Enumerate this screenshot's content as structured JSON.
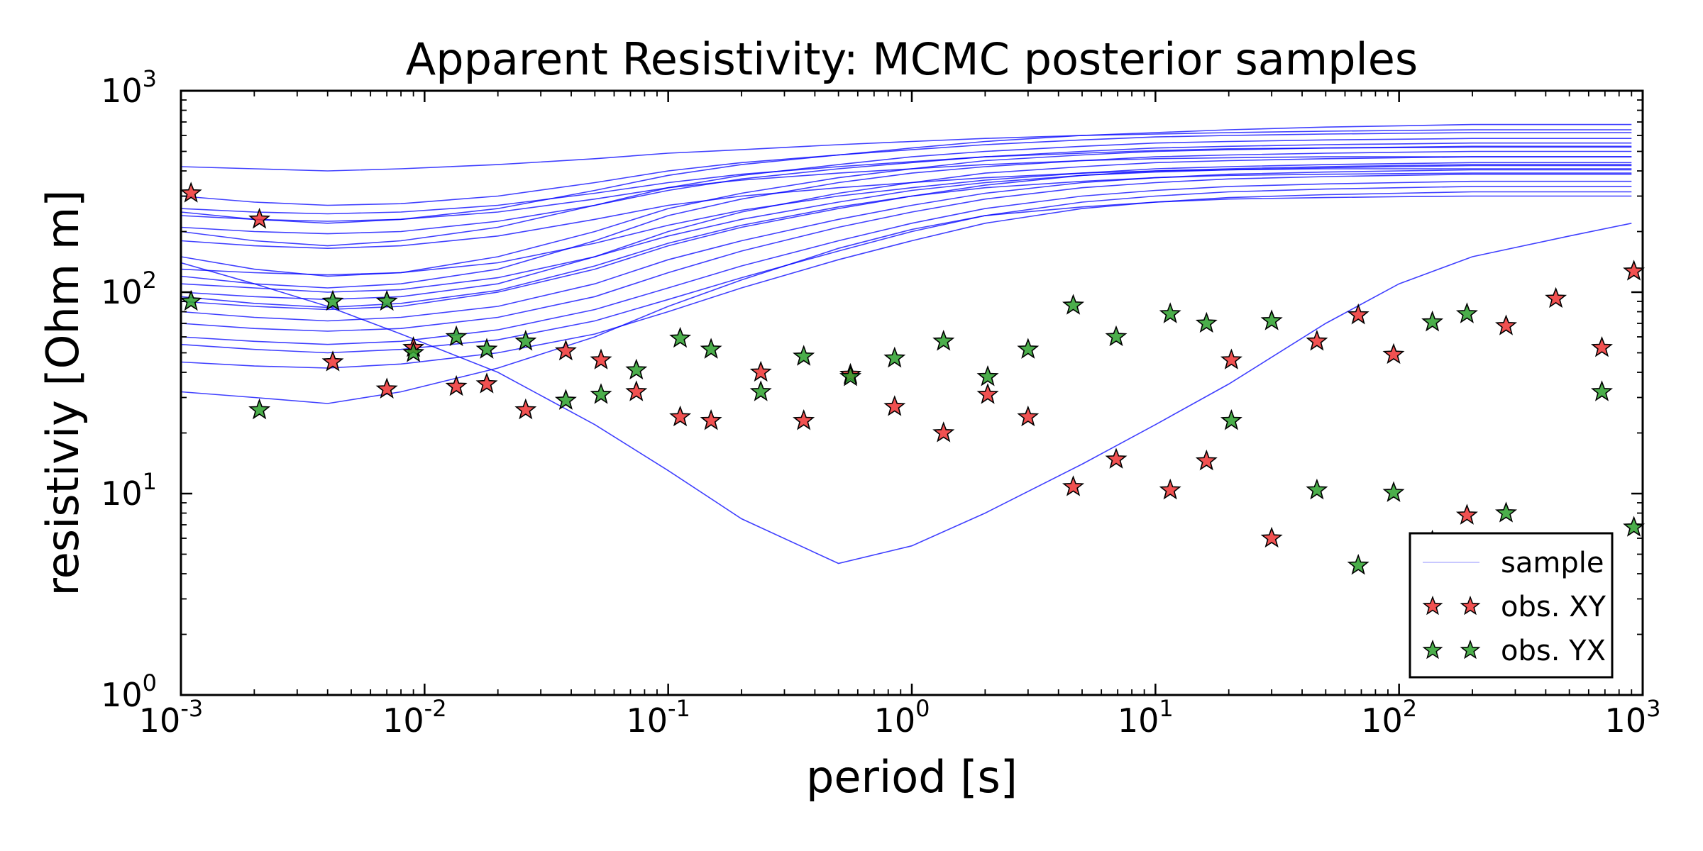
{
  "chart_data": {
    "type": "line",
    "title": "Apparent Resistivity: MCMC posterior samples",
    "xlabel": "period [s]",
    "ylabel": "resistiviy [Ohm m]",
    "xscale": "log",
    "yscale": "log",
    "xlim": [
      0.001,
      1000
    ],
    "ylim": [
      1,
      1000
    ],
    "grid": false,
    "legend_placement": "bottom-right",
    "x_ticks": [
      {
        "base": "10",
        "exp": "-3",
        "value": 0.001
      },
      {
        "base": "10",
        "exp": "-2",
        "value": 0.01
      },
      {
        "base": "10",
        "exp": "-1",
        "value": 0.1
      },
      {
        "base": "10",
        "exp": "0",
        "value": 1
      },
      {
        "base": "10",
        "exp": "1",
        "value": 10
      },
      {
        "base": "10",
        "exp": "2",
        "value": 100
      },
      {
        "base": "10",
        "exp": "3",
        "value": 1000
      }
    ],
    "y_ticks": [
      {
        "base": "10",
        "exp": "0",
        "value": 1
      },
      {
        "base": "10",
        "exp": "1",
        "value": 10
      },
      {
        "base": "10",
        "exp": "2",
        "value": 100
      },
      {
        "base": "10",
        "exp": "3",
        "value": 1000
      }
    ],
    "legend": [
      {
        "label": "sample",
        "kind": "line",
        "color": "#0000ff"
      },
      {
        "label": "obs. XY",
        "kind": "star",
        "color": "#ee3333"
      },
      {
        "label": "obs. YX",
        "kind": "star",
        "color": "#2ca02c"
      }
    ],
    "sample_color": "#0000ff",
    "sample_x": [
      0.001,
      0.002,
      0.004,
      0.008,
      0.02,
      0.05,
      0.1,
      0.2,
      0.5,
      1,
      2,
      5,
      10,
      20,
      50,
      100,
      200,
      500,
      900
    ],
    "samples": [
      [
        420,
        410,
        400,
        410,
        430,
        460,
        490,
        510,
        540,
        560,
        580,
        600,
        610,
        620,
        630,
        635,
        640,
        640,
        640
      ],
      [
        300,
        280,
        270,
        275,
        300,
        350,
        400,
        440,
        480,
        510,
        540,
        570,
        590,
        600,
        610,
        615,
        620,
        620,
        620
      ],
      [
        250,
        230,
        220,
        230,
        260,
        320,
        380,
        430,
        480,
        520,
        560,
        600,
        620,
        640,
        660,
        670,
        680,
        680,
        680
      ],
      [
        200,
        180,
        170,
        180,
        210,
        270,
        330,
        380,
        430,
        470,
        500,
        530,
        550,
        560,
        570,
        575,
        580,
        580,
        580
      ],
      [
        150,
        130,
        120,
        125,
        150,
        200,
        260,
        310,
        370,
        410,
        450,
        480,
        500,
        510,
        520,
        525,
        530,
        530,
        530
      ],
      [
        120,
        110,
        105,
        110,
        130,
        180,
        240,
        290,
        350,
        390,
        420,
        450,
        470,
        480,
        490,
        495,
        500,
        500,
        500
      ],
      [
        100,
        95,
        92,
        95,
        110,
        150,
        200,
        250,
        310,
        350,
        390,
        420,
        440,
        450,
        460,
        465,
        470,
        470,
        470
      ],
      [
        90,
        85,
        82,
        85,
        100,
        130,
        170,
        210,
        260,
        300,
        340,
        380,
        400,
        410,
        420,
        425,
        430,
        430,
        430
      ],
      [
        80,
        75,
        72,
        75,
        85,
        110,
        145,
        180,
        230,
        270,
        310,
        350,
        370,
        385,
        395,
        400,
        405,
        405,
        405
      ],
      [
        70,
        66,
        64,
        66,
        75,
        95,
        125,
        160,
        210,
        250,
        290,
        330,
        350,
        365,
        375,
        380,
        385,
        385,
        385
      ],
      [
        60,
        57,
        55,
        57,
        65,
        82,
        105,
        135,
        180,
        220,
        260,
        300,
        320,
        335,
        345,
        350,
        355,
        355,
        355
      ],
      [
        55,
        52,
        50,
        52,
        58,
        72,
        92,
        118,
        160,
        200,
        240,
        280,
        300,
        315,
        325,
        330,
        335,
        335,
        335
      ],
      [
        45,
        43,
        42,
        44,
        50,
        62,
        80,
        105,
        145,
        180,
        220,
        260,
        280,
        295,
        305,
        310,
        315,
        315,
        315
      ],
      [
        32,
        30,
        28,
        32,
        42,
        60,
        85,
        115,
        165,
        205,
        240,
        265,
        280,
        290,
        295,
        298,
        300,
        300,
        300
      ],
      [
        240,
        230,
        225,
        230,
        250,
        290,
        330,
        360,
        390,
        410,
        430,
        450,
        460,
        465,
        470,
        470,
        470,
        470,
        470
      ],
      [
        180,
        170,
        165,
        170,
        190,
        230,
        270,
        300,
        330,
        350,
        370,
        390,
        400,
        405,
        410,
        410,
        410,
        410,
        410
      ],
      [
        140,
        110,
        85,
        62,
        40,
        22,
        13,
        7.5,
        4.5,
        5.5,
        8,
        14,
        22,
        35,
        70,
        110,
        150,
        190,
        220
      ],
      [
        130,
        125,
        122,
        125,
        140,
        175,
        215,
        255,
        300,
        330,
        360,
        390,
        410,
        420,
        430,
        435,
        440,
        440,
        440
      ],
      [
        210,
        200,
        195,
        200,
        225,
        270,
        320,
        365,
        410,
        440,
        470,
        500,
        520,
        530,
        540,
        545,
        550,
        550,
        550
      ],
      [
        110,
        105,
        100,
        103,
        118,
        150,
        190,
        230,
        280,
        320,
        350,
        380,
        395,
        405,
        415,
        420,
        425,
        425,
        425
      ],
      [
        95,
        88,
        84,
        88,
        102,
        135,
        175,
        215,
        265,
        300,
        330,
        355,
        370,
        380,
        385,
        388,
        390,
        390,
        390
      ],
      [
        260,
        250,
        245,
        250,
        270,
        310,
        350,
        385,
        420,
        445,
        470,
        490,
        505,
        515,
        520,
        522,
        525,
        525,
        525
      ]
    ],
    "obs_xy": {
      "name": "obs. XY",
      "color": "#ee3333",
      "points": [
        [
          0.0011,
          310
        ],
        [
          0.0021,
          230
        ],
        [
          0.0042,
          45
        ],
        [
          0.007,
          33
        ],
        [
          0.009,
          53
        ],
        [
          0.0135,
          34
        ],
        [
          0.018,
          35
        ],
        [
          0.026,
          26
        ],
        [
          0.038,
          51
        ],
        [
          0.053,
          46
        ],
        [
          0.074,
          32
        ],
        [
          0.112,
          24
        ],
        [
          0.15,
          23
        ],
        [
          0.24,
          40
        ],
        [
          0.36,
          23
        ],
        [
          0.56,
          39
        ],
        [
          0.85,
          27
        ],
        [
          1.35,
          20
        ],
        [
          2.05,
          31
        ],
        [
          3.0,
          24
        ],
        [
          4.6,
          10.8
        ],
        [
          6.9,
          14.8
        ],
        [
          11.5,
          10.4
        ],
        [
          16.2,
          14.5
        ],
        [
          20.5,
          46
        ],
        [
          30,
          6
        ],
        [
          46,
          57
        ],
        [
          68,
          77
        ],
        [
          95,
          49
        ],
        [
          137,
          5.8
        ],
        [
          190,
          7.8
        ],
        [
          275,
          68
        ],
        [
          440,
          93
        ],
        [
          680,
          53
        ],
        [
          920,
          127
        ]
      ]
    },
    "obs_yx": {
      "name": "obs. YX",
      "color": "#2ca02c",
      "points": [
        [
          0.0011,
          90
        ],
        [
          0.0021,
          26
        ],
        [
          0.0042,
          90
        ],
        [
          0.007,
          90
        ],
        [
          0.009,
          50
        ],
        [
          0.0135,
          60
        ],
        [
          0.018,
          52
        ],
        [
          0.026,
          57
        ],
        [
          0.038,
          29
        ],
        [
          0.053,
          31
        ],
        [
          0.074,
          41
        ],
        [
          0.112,
          59
        ],
        [
          0.15,
          52
        ],
        [
          0.24,
          32
        ],
        [
          0.36,
          48
        ],
        [
          0.56,
          38
        ],
        [
          0.85,
          47
        ],
        [
          1.35,
          57
        ],
        [
          2.05,
          38
        ],
        [
          3.0,
          52
        ],
        [
          4.6,
          86
        ],
        [
          6.9,
          60
        ],
        [
          11.5,
          78
        ],
        [
          16.2,
          70
        ],
        [
          20.5,
          23
        ],
        [
          30,
          72
        ],
        [
          46,
          10.4
        ],
        [
          68,
          4.4
        ],
        [
          95,
          10.1
        ],
        [
          137,
          71
        ],
        [
          190,
          78
        ],
        [
          275,
          8
        ],
        [
          680,
          32
        ],
        [
          920,
          6.8
        ]
      ]
    }
  }
}
